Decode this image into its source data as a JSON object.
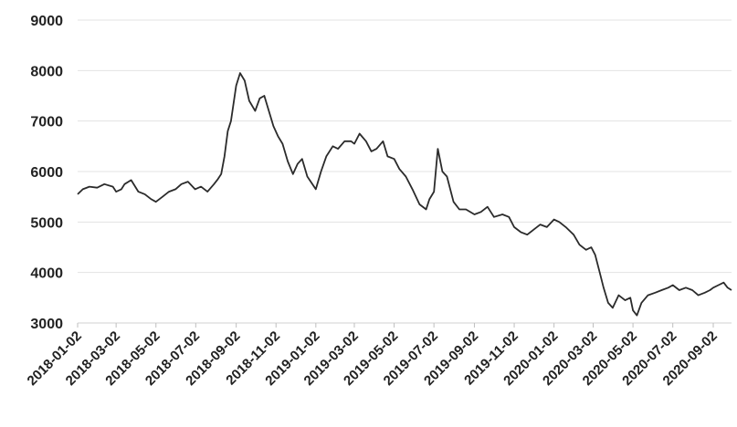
{
  "chart_data": {
    "type": "line",
    "title": "",
    "xlabel": "",
    "ylabel": "",
    "ylim": [
      3000,
      9000
    ],
    "xlim": [
      "2018-01-02",
      "2020-09-30"
    ],
    "grid": "horizontal",
    "y_ticks": [
      "3000",
      "4000",
      "5000",
      "6000",
      "7000",
      "8000",
      "9000"
    ],
    "x_ticks": [
      "2018-01-02",
      "2018-03-02",
      "2018-05-02",
      "2018-07-02",
      "2018-09-02",
      "2018-11-02",
      "2019-01-02",
      "2019-03-02",
      "2019-05-02",
      "2019-07-02",
      "2019-09-02",
      "2019-11-02",
      "2020-01-02",
      "2020-03-02",
      "2020-05-02",
      "2020-07-02",
      "2020-09-02"
    ],
    "colors": {
      "line": "#2b2b2b",
      "grid": "#e3e3e3"
    },
    "series": [
      {
        "x": [
          "2018-01-02",
          "2018-01-10",
          "2018-01-20",
          "2018-02-01",
          "2018-02-12",
          "2018-02-25",
          "2018-03-02",
          "2018-03-10",
          "2018-03-15",
          "2018-03-25",
          "2018-04-05",
          "2018-04-15",
          "2018-04-25",
          "2018-05-02",
          "2018-05-12",
          "2018-05-22",
          "2018-06-01",
          "2018-06-10",
          "2018-06-20",
          "2018-07-01",
          "2018-07-10",
          "2018-07-20",
          "2018-07-30",
          "2018-08-05",
          "2018-08-10",
          "2018-08-15",
          "2018-08-20",
          "2018-08-25",
          "2018-09-02",
          "2018-09-08",
          "2018-09-15",
          "2018-09-22",
          "2018-10-01",
          "2018-10-08",
          "2018-10-15",
          "2018-10-22",
          "2018-10-29",
          "2018-11-05",
          "2018-11-12",
          "2018-11-20",
          "2018-11-28",
          "2018-12-05",
          "2018-12-12",
          "2018-12-20",
          "2019-01-02",
          "2019-01-10",
          "2019-01-18",
          "2019-01-28",
          "2019-02-05",
          "2019-02-15",
          "2019-02-25",
          "2019-03-02",
          "2019-03-10",
          "2019-03-20",
          "2019-03-28",
          "2019-04-05",
          "2019-04-15",
          "2019-04-22",
          "2019-05-02",
          "2019-05-10",
          "2019-05-20",
          "2019-05-30",
          "2019-06-10",
          "2019-06-20",
          "2019-06-25",
          "2019-07-02",
          "2019-07-08",
          "2019-07-15",
          "2019-07-22",
          "2019-08-01",
          "2019-08-10",
          "2019-08-20",
          "2019-09-02",
          "2019-09-12",
          "2019-09-22",
          "2019-10-02",
          "2019-10-15",
          "2019-10-25",
          "2019-11-02",
          "2019-11-12",
          "2019-11-22",
          "2019-12-02",
          "2019-12-12",
          "2019-12-22",
          "2020-01-02",
          "2020-01-10",
          "2020-01-20",
          "2020-02-01",
          "2020-02-10",
          "2020-02-20",
          "2020-02-28",
          "2020-03-05",
          "2020-03-12",
          "2020-03-18",
          "2020-03-25",
          "2020-04-01",
          "2020-04-10",
          "2020-04-20",
          "2020-04-28",
          "2020-05-02",
          "2020-05-08",
          "2020-05-15",
          "2020-05-25",
          "2020-06-05",
          "2020-06-15",
          "2020-06-25",
          "2020-07-02",
          "2020-07-12",
          "2020-07-22",
          "2020-08-01",
          "2020-08-10",
          "2020-08-20",
          "2020-08-28",
          "2020-09-02",
          "2020-09-10",
          "2020-09-18",
          "2020-09-24",
          "2020-09-30"
        ],
        "values": [
          5550,
          5650,
          5700,
          5680,
          5750,
          5700,
          5600,
          5650,
          5750,
          5830,
          5600,
          5550,
          5450,
          5400,
          5500,
          5600,
          5650,
          5750,
          5800,
          5650,
          5700,
          5600,
          5750,
          5850,
          5950,
          6300,
          6800,
          7000,
          7700,
          7950,
          7800,
          7400,
          7200,
          7450,
          7500,
          7200,
          6900,
          6700,
          6550,
          6200,
          5950,
          6150,
          6250,
          5900,
          5650,
          6000,
          6300,
          6500,
          6450,
          6600,
          6600,
          6550,
          6750,
          6600,
          6400,
          6450,
          6600,
          6300,
          6250,
          6050,
          5900,
          5650,
          5350,
          5250,
          5450,
          5600,
          6450,
          6000,
          5900,
          5400,
          5250,
          5250,
          5150,
          5200,
          5300,
          5100,
          5150,
          5100,
          4900,
          4800,
          4750,
          4850,
          4950,
          4900,
          5050,
          5000,
          4900,
          4750,
          4550,
          4450,
          4500,
          4350,
          4000,
          3700,
          3400,
          3300,
          3550,
          3450,
          3500,
          3250,
          3150,
          3400,
          3550,
          3600,
          3650,
          3700,
          3750,
          3650,
          3700,
          3650,
          3550,
          3600,
          3650,
          3700,
          3750,
          3800,
          3700,
          3650
        ]
      }
    ]
  }
}
